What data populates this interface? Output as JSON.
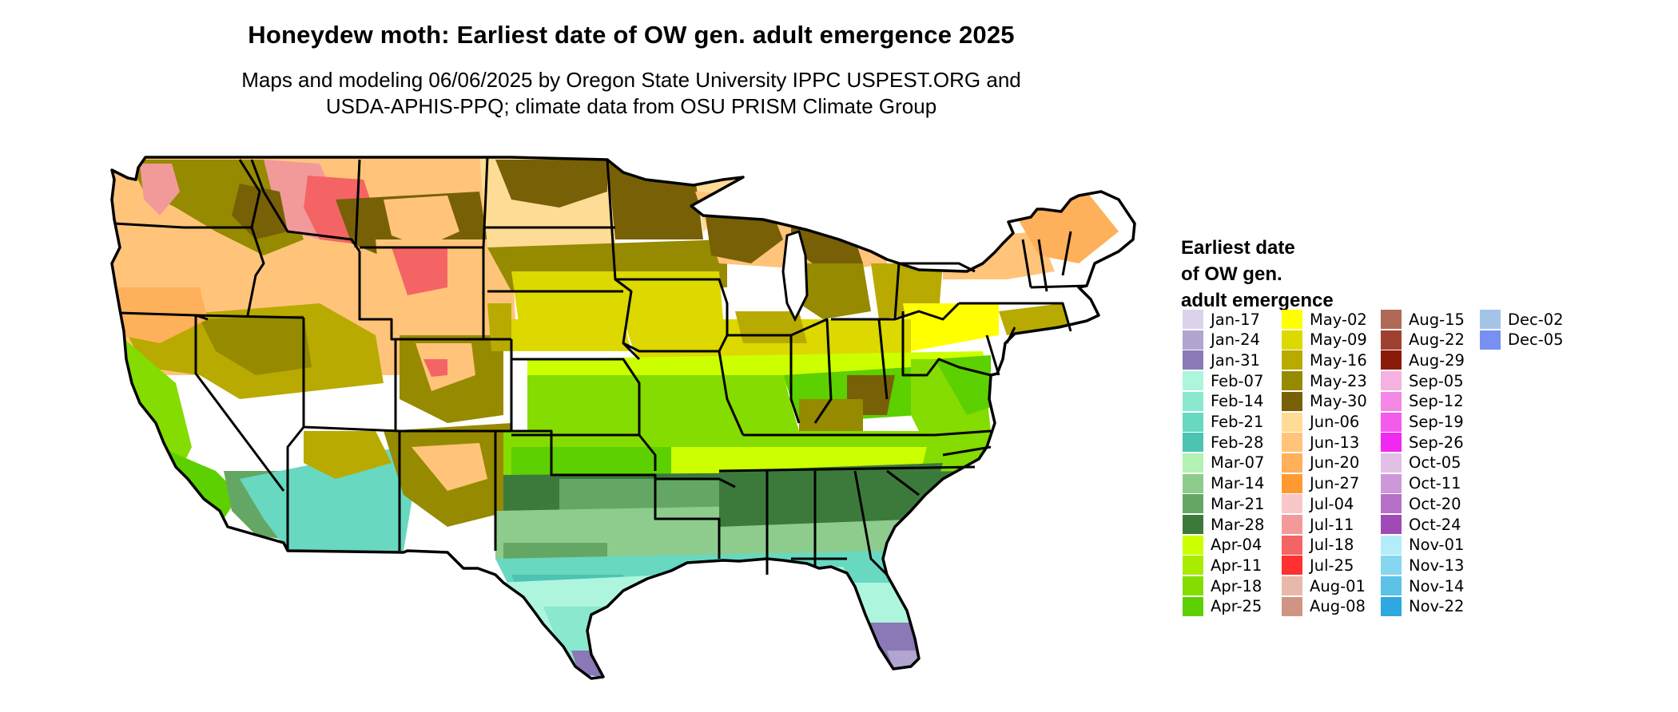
{
  "title": "Honeydew moth: Earliest date of OW gen. adult emergence 2025",
  "subtitle_lines": [
    "Maps and modeling 06/06/2025 by Oregon State University IPPC USPEST.ORG and",
    "USDA-APHIS-PPQ; climate data from OSU PRISM Climate Group"
  ],
  "legend": {
    "title_lines": [
      "Earliest date",
      "of OW gen.",
      "adult emergence"
    ],
    "columns": [
      [
        {
          "label": "Jan-17",
          "color": "#dcd3ea"
        },
        {
          "label": "Jan-24",
          "color": "#b2a5cf"
        },
        {
          "label": "Jan-31",
          "color": "#8a79b6"
        },
        {
          "label": "Feb-07",
          "color": "#aef5de"
        },
        {
          "label": "Feb-14",
          "color": "#8ae8cf"
        },
        {
          "label": "Feb-21",
          "color": "#68d8c0"
        },
        {
          "label": "Feb-28",
          "color": "#4cc3b3"
        },
        {
          "label": "Mar-07",
          "color": "#b2f2b2"
        },
        {
          "label": "Mar-14",
          "color": "#8ecc8e"
        },
        {
          "label": "Mar-21",
          "color": "#64a764"
        },
        {
          "label": "Mar-28",
          "color": "#3c7a3c"
        },
        {
          "label": "Apr-04",
          "color": "#ccff00"
        },
        {
          "label": "Apr-11",
          "color": "#a8ec00"
        },
        {
          "label": "Apr-18",
          "color": "#84dc00"
        },
        {
          "label": "Apr-25",
          "color": "#5cd000"
        }
      ],
      [
        {
          "label": "May-02",
          "color": "#ffff00"
        },
        {
          "label": "May-09",
          "color": "#dcd800"
        },
        {
          "label": "May-16",
          "color": "#b8aa00"
        },
        {
          "label": "May-23",
          "color": "#968a00"
        },
        {
          "label": "May-30",
          "color": "#786006"
        },
        {
          "label": "Jun-06",
          "color": "#ffdc96"
        },
        {
          "label": "Jun-13",
          "color": "#ffc47a"
        },
        {
          "label": "Jun-20",
          "color": "#ffb05a"
        },
        {
          "label": "Jun-27",
          "color": "#ff9a32"
        },
        {
          "label": "Jul-04",
          "color": "#f8c8c8"
        },
        {
          "label": "Jul-11",
          "color": "#f29a9a"
        },
        {
          "label": "Jul-18",
          "color": "#f56464"
        },
        {
          "label": "Jul-25",
          "color": "#ff3030"
        },
        {
          "label": "Aug-01",
          "color": "#e8b8aa"
        },
        {
          "label": "Aug-08",
          "color": "#d09484"
        }
      ],
      [
        {
          "label": "Aug-15",
          "color": "#b06858"
        },
        {
          "label": "Aug-22",
          "color": "#a04030"
        },
        {
          "label": "Aug-29",
          "color": "#8a1a0a"
        },
        {
          "label": "Sep-05",
          "color": "#f5b2e0"
        },
        {
          "label": "Sep-12",
          "color": "#f588e4"
        },
        {
          "label": "Sep-19",
          "color": "#f55aec"
        },
        {
          "label": "Sep-26",
          "color": "#f028f0"
        },
        {
          "label": "Oct-05",
          "color": "#e2c0e6"
        },
        {
          "label": "Oct-11",
          "color": "#cc98d8"
        },
        {
          "label": "Oct-20",
          "color": "#b670c8"
        },
        {
          "label": "Oct-24",
          "color": "#a04ab8"
        },
        {
          "label": "Nov-01",
          "color": "#b4ecfa"
        },
        {
          "label": "Nov-13",
          "color": "#86d6f0"
        },
        {
          "label": "Nov-14",
          "color": "#5cc2e8"
        },
        {
          "label": "Nov-22",
          "color": "#2ea8e0"
        }
      ],
      [
        {
          "label": "Dec-02",
          "color": "#a2c4e6"
        },
        {
          "label": "Dec-05",
          "color": "#7890f0"
        }
      ]
    ]
  }
}
